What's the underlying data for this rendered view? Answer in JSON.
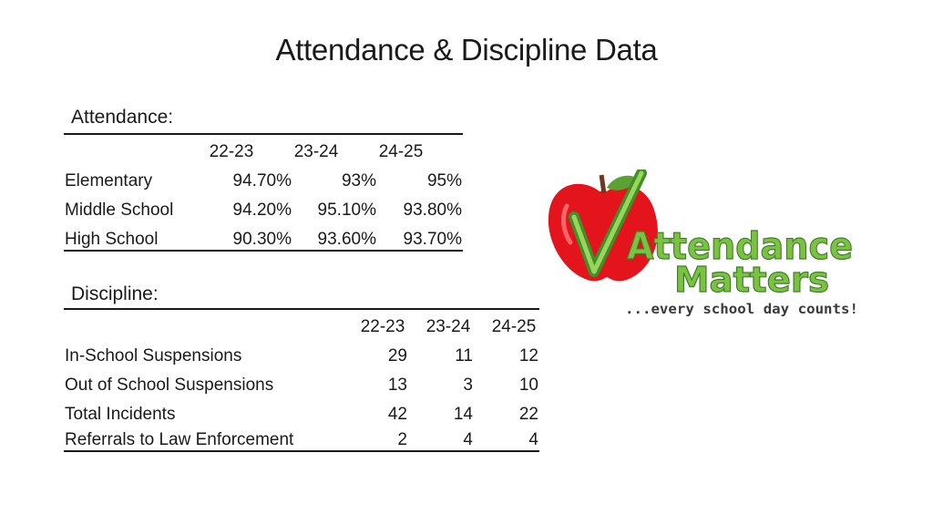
{
  "title": "Attendance & Discipline Data",
  "attendance": {
    "label": "Attendance:",
    "years": [
      "22-23",
      "23-24",
      "24-25"
    ],
    "rows": [
      {
        "name": "Elementary",
        "values": [
          "94.70%",
          "93%",
          "95%"
        ]
      },
      {
        "name": "Middle School",
        "values": [
          "94.20%",
          "95.10%",
          "93.80%"
        ]
      },
      {
        "name": "High School",
        "values": [
          "90.30%",
          "93.60%",
          "93.70%"
        ]
      }
    ]
  },
  "discipline": {
    "label": "Discipline:",
    "years": [
      "22-23",
      "23-24",
      "24-25"
    ],
    "rows": [
      {
        "name": "In-School Suspensions",
        "values": [
          "29",
          "11",
          "12"
        ]
      },
      {
        "name": "Out of School Suspensions",
        "values": [
          "13",
          "3",
          "10"
        ]
      },
      {
        "name": "Total Incidents",
        "values": [
          "42",
          "14",
          "22"
        ]
      },
      {
        "name": "Referrals to Law Enforcement",
        "values": [
          "2",
          "4",
          "4"
        ]
      }
    ]
  },
  "logo": {
    "line1": "Attendance",
    "line2": "Matters",
    "tagline": "...every school day counts!",
    "colors": {
      "apple": "#e3141b",
      "leaf": "#5aa332",
      "text": "#7cc242",
      "tagline": "#3a3a3a"
    }
  }
}
